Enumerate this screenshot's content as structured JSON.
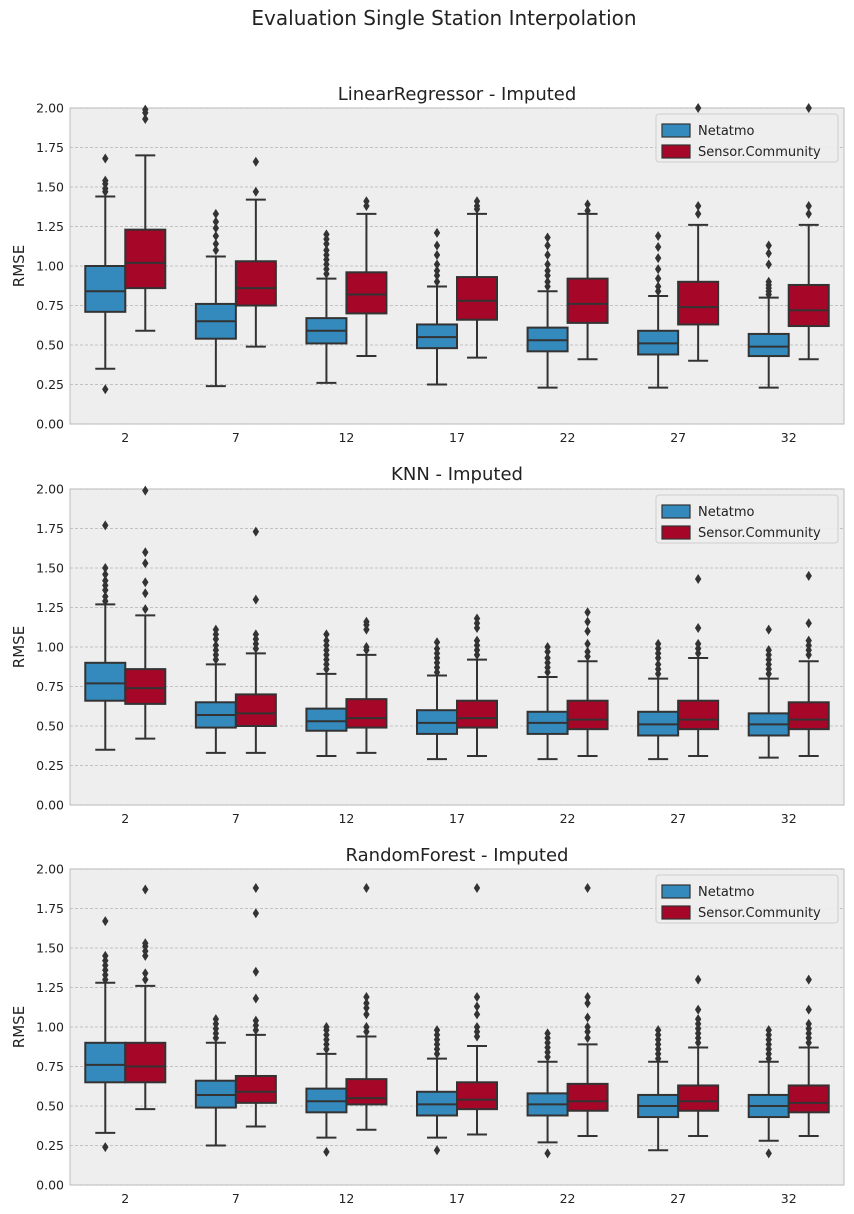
{
  "figure_title": "Evaluation Single Station Interpolation",
  "colors": {
    "Netatmo": "#348ABD",
    "Sensor.Community": "#A60628",
    "edge": "#333333",
    "axes_bg": "#EEEEEE",
    "grid": "#B2B2B2"
  },
  "chart_data": [
    {
      "type": "box",
      "title": "LinearRegressor - Imputed",
      "xlabel": "",
      "ylabel": "RMSE",
      "ylim": [
        0,
        2.0
      ],
      "yticks": [
        "0.00",
        "0.25",
        "0.50",
        "0.75",
        "1.00",
        "1.25",
        "1.50",
        "1.75",
        "2.00"
      ],
      "categories": [
        "2",
        "7",
        "12",
        "17",
        "22",
        "27",
        "32"
      ],
      "grid": true,
      "legend_position": "top-right",
      "series": [
        {
          "name": "Netatmo",
          "boxes": [
            {
              "whislo": 0.35,
              "q1": 0.71,
              "med": 0.84,
              "q3": 1.0,
              "whishi": 1.44,
              "fliers": [
                0.22,
                1.47,
                1.49,
                1.52,
                1.54,
                1.68
              ]
            },
            {
              "whislo": 0.24,
              "q1": 0.54,
              "med": 0.65,
              "q3": 0.76,
              "whishi": 1.06,
              "fliers": [
                1.1,
                1.14,
                1.19,
                1.24,
                1.28,
                1.33
              ]
            },
            {
              "whislo": 0.26,
              "q1": 0.51,
              "med": 0.59,
              "q3": 0.67,
              "whishi": 0.92,
              "fliers": [
                0.95,
                0.98,
                1.01,
                1.04,
                1.07,
                1.1,
                1.14,
                1.17,
                1.2
              ]
            },
            {
              "whislo": 0.25,
              "q1": 0.48,
              "med": 0.55,
              "q3": 0.63,
              "whishi": 0.87,
              "fliers": [
                0.9,
                0.94,
                0.97,
                1.01,
                1.07,
                1.13,
                1.21
              ]
            },
            {
              "whislo": 0.23,
              "q1": 0.46,
              "med": 0.53,
              "q3": 0.61,
              "whishi": 0.84,
              "fliers": [
                0.87,
                0.9,
                0.94,
                0.97,
                1.01,
                1.07,
                1.13,
                1.18
              ]
            },
            {
              "whislo": 0.23,
              "q1": 0.44,
              "med": 0.51,
              "q3": 0.59,
              "whishi": 0.81,
              "fliers": [
                0.84,
                0.87,
                0.92,
                0.98,
                1.05,
                1.12,
                1.19
              ]
            },
            {
              "whislo": 0.23,
              "q1": 0.43,
              "med": 0.49,
              "q3": 0.57,
              "whishi": 0.8,
              "fliers": [
                0.82,
                0.84,
                0.86,
                0.88,
                0.9,
                1.01,
                1.08,
                1.13
              ]
            }
          ]
        },
        {
          "name": "Sensor.Community",
          "boxes": [
            {
              "whislo": 0.59,
              "q1": 0.86,
              "med": 1.02,
              "q3": 1.23,
              "whishi": 1.7,
              "fliers": [
                1.93,
                1.97,
                1.99
              ]
            },
            {
              "whislo": 0.49,
              "q1": 0.75,
              "med": 0.86,
              "q3": 1.03,
              "whishi": 1.42,
              "fliers": [
                1.47,
                1.66
              ]
            },
            {
              "whislo": 0.43,
              "q1": 0.7,
              "med": 0.82,
              "q3": 0.96,
              "whishi": 1.33,
              "fliers": [
                1.38,
                1.41
              ]
            },
            {
              "whislo": 0.42,
              "q1": 0.66,
              "med": 0.78,
              "q3": 0.93,
              "whishi": 1.33,
              "fliers": [
                1.36,
                1.38,
                1.41
              ]
            },
            {
              "whislo": 0.41,
              "q1": 0.64,
              "med": 0.76,
              "q3": 0.92,
              "whishi": 1.33,
              "fliers": [
                1.35,
                1.39
              ]
            },
            {
              "whislo": 0.4,
              "q1": 0.63,
              "med": 0.74,
              "q3": 0.9,
              "whishi": 1.26,
              "fliers": [
                1.33,
                1.38,
                2.0
              ]
            },
            {
              "whislo": 0.41,
              "q1": 0.62,
              "med": 0.72,
              "q3": 0.88,
              "whishi": 1.26,
              "fliers": [
                1.33,
                1.38,
                2.0
              ]
            }
          ]
        }
      ]
    },
    {
      "type": "box",
      "title": "KNN - Imputed",
      "xlabel": "",
      "ylabel": "RMSE",
      "ylim": [
        0,
        2.0
      ],
      "yticks": [
        "0.00",
        "0.25",
        "0.50",
        "0.75",
        "1.00",
        "1.25",
        "1.50",
        "1.75",
        "2.00"
      ],
      "categories": [
        "2",
        "7",
        "12",
        "17",
        "22",
        "27",
        "32"
      ],
      "grid": true,
      "legend_position": "top-right",
      "series": [
        {
          "name": "Netatmo",
          "boxes": [
            {
              "whislo": 0.35,
              "q1": 0.66,
              "med": 0.77,
              "q3": 0.9,
              "whishi": 1.27,
              "fliers": [
                1.29,
                1.32,
                1.36,
                1.39,
                1.42,
                1.46,
                1.5,
                1.77
              ]
            },
            {
              "whislo": 0.33,
              "q1": 0.49,
              "med": 0.57,
              "q3": 0.65,
              "whishi": 0.89,
              "fliers": [
                0.92,
                0.95,
                0.98,
                1.01,
                1.05,
                1.08,
                1.11
              ]
            },
            {
              "whislo": 0.31,
              "q1": 0.47,
              "med": 0.53,
              "q3": 0.61,
              "whishi": 0.83,
              "fliers": [
                0.86,
                0.89,
                0.92,
                0.95,
                0.98,
                1.01,
                1.04,
                1.08
              ]
            },
            {
              "whislo": 0.29,
              "q1": 0.45,
              "med": 0.52,
              "q3": 0.6,
              "whishi": 0.82,
              "fliers": [
                0.84,
                0.87,
                0.9,
                0.93,
                0.96,
                0.99,
                1.03
              ]
            },
            {
              "whislo": 0.29,
              "q1": 0.45,
              "med": 0.52,
              "q3": 0.59,
              "whishi": 0.81,
              "fliers": [
                0.84,
                0.87,
                0.9,
                0.93,
                0.97,
                1.0
              ]
            },
            {
              "whislo": 0.29,
              "q1": 0.44,
              "med": 0.51,
              "q3": 0.59,
              "whishi": 0.8,
              "fliers": [
                0.83,
                0.86,
                0.89,
                0.93,
                0.96,
                0.99,
                1.02
              ]
            },
            {
              "whislo": 0.3,
              "q1": 0.44,
              "med": 0.51,
              "q3": 0.58,
              "whishi": 0.8,
              "fliers": [
                0.83,
                0.86,
                0.89,
                0.92,
                0.95,
                0.98,
                1.11
              ]
            }
          ]
        },
        {
          "name": "Sensor.Community",
          "boxes": [
            {
              "whislo": 0.42,
              "q1": 0.64,
              "med": 0.74,
              "q3": 0.86,
              "whishi": 1.2,
              "fliers": [
                1.24,
                1.34,
                1.41,
                1.53,
                1.6,
                1.99
              ]
            },
            {
              "whislo": 0.33,
              "q1": 0.5,
              "med": 0.58,
              "q3": 0.7,
              "whishi": 0.96,
              "fliers": [
                0.99,
                1.02,
                1.05,
                1.08,
                1.3,
                1.73
              ]
            },
            {
              "whislo": 0.33,
              "q1": 0.49,
              "med": 0.55,
              "q3": 0.67,
              "whishi": 0.95,
              "fliers": [
                0.98,
                1.0,
                1.11,
                1.14,
                1.16
              ]
            },
            {
              "whislo": 0.31,
              "q1": 0.49,
              "med": 0.55,
              "q3": 0.66,
              "whishi": 0.92,
              "fliers": [
                0.95,
                0.98,
                1.01,
                1.04,
                1.12,
                1.15,
                1.18
              ]
            },
            {
              "whislo": 0.31,
              "q1": 0.48,
              "med": 0.54,
              "q3": 0.66,
              "whishi": 0.91,
              "fliers": [
                0.94,
                0.97,
                1.02,
                1.1,
                1.16,
                1.22
              ]
            },
            {
              "whislo": 0.31,
              "q1": 0.48,
              "med": 0.54,
              "q3": 0.66,
              "whishi": 0.93,
              "fliers": [
                0.96,
                0.99,
                1.02,
                1.12,
                1.43
              ]
            },
            {
              "whislo": 0.31,
              "q1": 0.48,
              "med": 0.54,
              "q3": 0.65,
              "whishi": 0.91,
              "fliers": [
                0.95,
                0.98,
                1.01,
                1.04,
                1.15,
                1.45
              ]
            }
          ]
        }
      ]
    },
    {
      "type": "box",
      "title": "RandomForest - Imputed",
      "xlabel": "",
      "ylabel": "RMSE",
      "ylim": [
        0,
        2.0
      ],
      "yticks": [
        "0.00",
        "0.25",
        "0.50",
        "0.75",
        "1.00",
        "1.25",
        "1.50",
        "1.75",
        "2.00"
      ],
      "categories": [
        "2",
        "7",
        "12",
        "17",
        "22",
        "27",
        "32"
      ],
      "grid": true,
      "legend_position": "top-right",
      "series": [
        {
          "name": "Netatmo",
          "boxes": [
            {
              "whislo": 0.33,
              "q1": 0.65,
              "med": 0.76,
              "q3": 0.9,
              "whishi": 1.28,
              "fliers": [
                0.24,
                1.3,
                1.33,
                1.36,
                1.39,
                1.42,
                1.45,
                1.67
              ]
            },
            {
              "whislo": 0.25,
              "q1": 0.49,
              "med": 0.57,
              "q3": 0.66,
              "whishi": 0.9,
              "fliers": [
                0.93,
                0.96,
                0.99,
                1.02,
                1.05
              ]
            },
            {
              "whislo": 0.3,
              "q1": 0.46,
              "med": 0.53,
              "q3": 0.61,
              "whishi": 0.83,
              "fliers": [
                0.21,
                0.86,
                0.89,
                0.92,
                0.95,
                0.98,
                1.0
              ]
            },
            {
              "whislo": 0.3,
              "q1": 0.44,
              "med": 0.51,
              "q3": 0.59,
              "whishi": 0.8,
              "fliers": [
                0.22,
                0.83,
                0.86,
                0.89,
                0.92,
                0.95,
                0.98
              ]
            },
            {
              "whislo": 0.27,
              "q1": 0.44,
              "med": 0.51,
              "q3": 0.58,
              "whishi": 0.78,
              "fliers": [
                0.2,
                0.81,
                0.84,
                0.87,
                0.9,
                0.93,
                0.96
              ]
            },
            {
              "whislo": 0.22,
              "q1": 0.43,
              "med": 0.5,
              "q3": 0.57,
              "whishi": 0.78,
              "fliers": [
                0.8,
                0.83,
                0.86,
                0.89,
                0.92,
                0.95,
                0.98
              ]
            },
            {
              "whislo": 0.28,
              "q1": 0.43,
              "med": 0.5,
              "q3": 0.57,
              "whishi": 0.78,
              "fliers": [
                0.2,
                0.8,
                0.83,
                0.86,
                0.89,
                0.92,
                0.95,
                0.98
              ]
            }
          ]
        },
        {
          "name": "Sensor.Community",
          "boxes": [
            {
              "whislo": 0.48,
              "q1": 0.65,
              "med": 0.75,
              "q3": 0.9,
              "whishi": 1.26,
              "fliers": [
                1.3,
                1.34,
                1.45,
                1.48,
                1.51,
                1.53,
                1.87
              ]
            },
            {
              "whislo": 0.37,
              "q1": 0.52,
              "med": 0.59,
              "q3": 0.69,
              "whishi": 0.95,
              "fliers": [
                0.98,
                1.01,
                1.04,
                1.18,
                1.35,
                1.72,
                1.88
              ]
            },
            {
              "whislo": 0.35,
              "q1": 0.51,
              "med": 0.55,
              "q3": 0.67,
              "whishi": 0.94,
              "fliers": [
                0.97,
                1.0,
                1.08,
                1.12,
                1.15,
                1.19,
                1.88
              ]
            },
            {
              "whislo": 0.32,
              "q1": 0.48,
              "med": 0.54,
              "q3": 0.65,
              "whishi": 0.88,
              "fliers": [
                0.94,
                0.97,
                1.0,
                1.08,
                1.13,
                1.19,
                1.88
              ]
            },
            {
              "whislo": 0.31,
              "q1": 0.47,
              "med": 0.53,
              "q3": 0.64,
              "whishi": 0.89,
              "fliers": [
                0.93,
                0.97,
                1.0,
                1.06,
                1.15,
                1.19,
                1.88
              ]
            },
            {
              "whislo": 0.31,
              "q1": 0.47,
              "med": 0.53,
              "q3": 0.63,
              "whishi": 0.87,
              "fliers": [
                0.9,
                0.93,
                0.96,
                0.99,
                1.02,
                1.05,
                1.11,
                1.3
              ]
            },
            {
              "whislo": 0.31,
              "q1": 0.46,
              "med": 0.52,
              "q3": 0.63,
              "whishi": 0.87,
              "fliers": [
                0.9,
                0.93,
                0.96,
                0.99,
                1.02,
                1.11,
                1.3
              ]
            }
          ]
        }
      ]
    }
  ]
}
